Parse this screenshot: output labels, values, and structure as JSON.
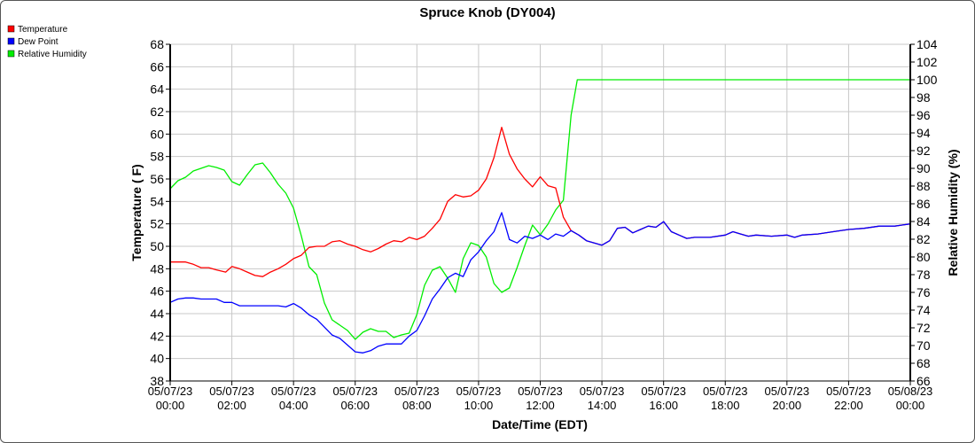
{
  "chart_data": {
    "type": "line",
    "title": "Spruce Knob (DY004)",
    "xlabel": "Date/Time (EDT)",
    "ylabel": "Temperature ( F)",
    "y2label": "Relative Humidity (%)",
    "ylim": [
      38,
      68
    ],
    "y2lim": [
      66,
      104
    ],
    "yticks": [
      38,
      40,
      42,
      44,
      46,
      48,
      50,
      52,
      54,
      56,
      58,
      60,
      62,
      64,
      66,
      68
    ],
    "y2ticks": [
      66,
      68,
      70,
      72,
      74,
      76,
      78,
      80,
      82,
      84,
      86,
      88,
      90,
      92,
      94,
      96,
      98,
      100,
      102,
      104
    ],
    "xticks": [
      [
        "05/07/23",
        "00:00"
      ],
      [
        "05/07/23",
        "02:00"
      ],
      [
        "05/07/23",
        "04:00"
      ],
      [
        "05/07/23",
        "06:00"
      ],
      [
        "05/07/23",
        "08:00"
      ],
      [
        "05/07/23",
        "10:00"
      ],
      [
        "05/07/23",
        "12:00"
      ],
      [
        "05/07/23",
        "14:00"
      ],
      [
        "05/07/23",
        "16:00"
      ],
      [
        "05/07/23",
        "18:00"
      ],
      [
        "05/07/23",
        "20:00"
      ],
      [
        "05/07/23",
        "22:00"
      ],
      [
        "05/08/23",
        "00:00"
      ]
    ],
    "x_hours_start": "05/07/23 00:00",
    "grid": true,
    "legend_position": "top-left",
    "series": [
      {
        "name": "Temperature",
        "color": "#ff0000",
        "axis": "left",
        "points": [
          [
            0,
            48.6
          ],
          [
            0.5,
            48.6
          ],
          [
            0.75,
            48.4
          ],
          [
            1,
            48.1
          ],
          [
            1.25,
            48.1
          ],
          [
            1.5,
            47.9
          ],
          [
            1.8,
            47.7
          ],
          [
            2,
            48.2
          ],
          [
            2.25,
            48.0
          ],
          [
            2.5,
            47.7
          ],
          [
            2.75,
            47.4
          ],
          [
            3,
            47.3
          ],
          [
            3.25,
            47.7
          ],
          [
            3.5,
            48.0
          ],
          [
            3.75,
            48.4
          ],
          [
            4,
            48.9
          ],
          [
            4.25,
            49.2
          ],
          [
            4.5,
            49.9
          ],
          [
            4.75,
            50.0
          ],
          [
            5,
            50.0
          ],
          [
            5.25,
            50.4
          ],
          [
            5.5,
            50.5
          ],
          [
            5.75,
            50.2
          ],
          [
            6,
            50.0
          ],
          [
            6.25,
            49.7
          ],
          [
            6.5,
            49.5
          ],
          [
            6.75,
            49.8
          ],
          [
            7,
            50.2
          ],
          [
            7.25,
            50.5
          ],
          [
            7.5,
            50.4
          ],
          [
            7.75,
            50.8
          ],
          [
            8,
            50.6
          ],
          [
            8.25,
            50.9
          ],
          [
            8.5,
            51.6
          ],
          [
            8.75,
            52.4
          ],
          [
            9,
            54.0
          ],
          [
            9.25,
            54.6
          ],
          [
            9.5,
            54.4
          ],
          [
            9.75,
            54.5
          ],
          [
            10,
            55.0
          ],
          [
            10.25,
            56.0
          ],
          [
            10.5,
            57.9
          ],
          [
            10.75,
            60.6
          ],
          [
            11,
            58.2
          ],
          [
            11.25,
            56.9
          ],
          [
            11.5,
            56.0
          ],
          [
            11.75,
            55.3
          ],
          [
            12,
            56.2
          ],
          [
            12.25,
            55.4
          ],
          [
            12.5,
            55.2
          ],
          [
            12.75,
            52.6
          ],
          [
            13,
            51.4
          ],
          [
            13.25,
            51.0
          ],
          [
            13.5,
            50.5
          ],
          [
            13.75,
            50.3
          ],
          [
            14,
            50.1
          ],
          [
            14.25,
            50.5
          ],
          [
            14.5,
            51.6
          ],
          [
            14.75,
            51.7
          ],
          [
            15,
            51.2
          ],
          [
            15.25,
            51.5
          ],
          [
            15.5,
            51.8
          ],
          [
            15.75,
            51.7
          ],
          [
            16,
            52.2
          ],
          [
            16.25,
            51.3
          ],
          [
            16.5,
            51.0
          ],
          [
            16.75,
            50.7
          ],
          [
            17,
            50.8
          ],
          [
            17.5,
            50.8
          ],
          [
            18,
            51.0
          ],
          [
            18.25,
            51.3
          ],
          [
            18.5,
            51.1
          ],
          [
            18.75,
            50.9
          ],
          [
            19,
            51.0
          ],
          [
            19.5,
            50.9
          ],
          [
            20,
            51.0
          ],
          [
            20.25,
            50.8
          ],
          [
            20.5,
            51.0
          ],
          [
            21,
            51.1
          ],
          [
            21.5,
            51.3
          ],
          [
            22,
            51.5
          ],
          [
            22.5,
            51.6
          ],
          [
            23,
            51.8
          ],
          [
            23.5,
            51.8
          ],
          [
            24,
            52.0
          ]
        ]
      },
      {
        "name": "Dew Point",
        "color": "#0000ff",
        "axis": "left",
        "points": [
          [
            0,
            45.0
          ],
          [
            0.25,
            45.3
          ],
          [
            0.5,
            45.4
          ],
          [
            0.75,
            45.4
          ],
          [
            1,
            45.3
          ],
          [
            1.5,
            45.3
          ],
          [
            1.75,
            45.0
          ],
          [
            2,
            45.0
          ],
          [
            2.25,
            44.7
          ],
          [
            3,
            44.7
          ],
          [
            3.5,
            44.7
          ],
          [
            3.75,
            44.6
          ],
          [
            4,
            44.9
          ],
          [
            4.25,
            44.5
          ],
          [
            4.5,
            43.9
          ],
          [
            4.75,
            43.5
          ],
          [
            5,
            42.8
          ],
          [
            5.25,
            42.1
          ],
          [
            5.5,
            41.8
          ],
          [
            5.75,
            41.2
          ],
          [
            6,
            40.6
          ],
          [
            6.25,
            40.5
          ],
          [
            6.5,
            40.7
          ],
          [
            6.75,
            41.1
          ],
          [
            7,
            41.3
          ],
          [
            7.5,
            41.3
          ],
          [
            7.75,
            42.0
          ],
          [
            8,
            42.5
          ],
          [
            8.25,
            43.8
          ],
          [
            8.5,
            45.3
          ],
          [
            8.75,
            46.2
          ],
          [
            9,
            47.2
          ],
          [
            9.25,
            47.6
          ],
          [
            9.5,
            47.3
          ],
          [
            9.75,
            48.8
          ],
          [
            10,
            49.5
          ],
          [
            10.25,
            50.5
          ],
          [
            10.5,
            51.3
          ],
          [
            10.75,
            53.0
          ],
          [
            11,
            50.6
          ],
          [
            11.25,
            50.3
          ],
          [
            11.5,
            50.9
          ],
          [
            11.75,
            50.7
          ],
          [
            12,
            51.0
          ],
          [
            12.25,
            50.6
          ],
          [
            12.5,
            51.1
          ],
          [
            12.75,
            50.9
          ],
          [
            13,
            51.4
          ],
          [
            13.25,
            51.0
          ],
          [
            13.5,
            50.5
          ],
          [
            13.75,
            50.3
          ],
          [
            14,
            50.1
          ],
          [
            14.25,
            50.5
          ],
          [
            14.5,
            51.6
          ],
          [
            14.75,
            51.7
          ],
          [
            15,
            51.2
          ],
          [
            15.25,
            51.5
          ],
          [
            15.5,
            51.8
          ],
          [
            15.75,
            51.7
          ],
          [
            16,
            52.2
          ],
          [
            16.25,
            51.3
          ],
          [
            16.5,
            51.0
          ],
          [
            16.75,
            50.7
          ],
          [
            17,
            50.8
          ],
          [
            17.5,
            50.8
          ],
          [
            18,
            51.0
          ],
          [
            18.25,
            51.3
          ],
          [
            18.5,
            51.1
          ],
          [
            18.75,
            50.9
          ],
          [
            19,
            51.0
          ],
          [
            19.5,
            50.9
          ],
          [
            20,
            51.0
          ],
          [
            20.25,
            50.8
          ],
          [
            20.5,
            51.0
          ],
          [
            21,
            51.1
          ],
          [
            21.5,
            51.3
          ],
          [
            22,
            51.5
          ],
          [
            22.5,
            51.6
          ],
          [
            23,
            51.8
          ],
          [
            23.5,
            51.8
          ],
          [
            24,
            52.0
          ]
        ]
      },
      {
        "name": "Relative Humidity",
        "color": "#00ee00",
        "axis": "right",
        "points": [
          [
            0,
            87.7
          ],
          [
            0.25,
            88.6
          ],
          [
            0.5,
            89.0
          ],
          [
            0.75,
            89.7
          ],
          [
            1,
            90.0
          ],
          [
            1.25,
            90.3
          ],
          [
            1.5,
            90.1
          ],
          [
            1.75,
            89.8
          ],
          [
            2,
            88.5
          ],
          [
            2.25,
            88.1
          ],
          [
            2.5,
            89.3
          ],
          [
            2.75,
            90.4
          ],
          [
            3,
            90.6
          ],
          [
            3.25,
            89.5
          ],
          [
            3.5,
            88.2
          ],
          [
            3.75,
            87.2
          ],
          [
            4,
            85.5
          ],
          [
            4.25,
            82.4
          ],
          [
            4.5,
            78.9
          ],
          [
            4.75,
            78.0
          ],
          [
            5,
            74.8
          ],
          [
            5.25,
            72.9
          ],
          [
            5.5,
            72.3
          ],
          [
            5.75,
            71.7
          ],
          [
            6,
            70.7
          ],
          [
            6.25,
            71.5
          ],
          [
            6.5,
            71.9
          ],
          [
            6.75,
            71.6
          ],
          [
            7,
            71.6
          ],
          [
            7.25,
            70.9
          ],
          [
            7.5,
            71.2
          ],
          [
            7.75,
            71.4
          ],
          [
            8,
            73.5
          ],
          [
            8.25,
            76.8
          ],
          [
            8.5,
            78.5
          ],
          [
            8.75,
            78.9
          ],
          [
            9,
            77.6
          ],
          [
            9.25,
            76.0
          ],
          [
            9.5,
            79.8
          ],
          [
            9.75,
            81.6
          ],
          [
            10,
            81.3
          ],
          [
            10.25,
            80.0
          ],
          [
            10.5,
            77.0
          ],
          [
            10.75,
            76.0
          ],
          [
            11,
            76.5
          ],
          [
            11.25,
            78.8
          ],
          [
            11.5,
            81.3
          ],
          [
            11.75,
            83.6
          ],
          [
            12,
            82.5
          ],
          [
            12.25,
            83.7
          ],
          [
            12.5,
            85.3
          ],
          [
            12.75,
            86.4
          ],
          [
            13,
            96.0
          ],
          [
            13.2,
            100
          ],
          [
            24,
            100
          ]
        ]
      }
    ]
  }
}
